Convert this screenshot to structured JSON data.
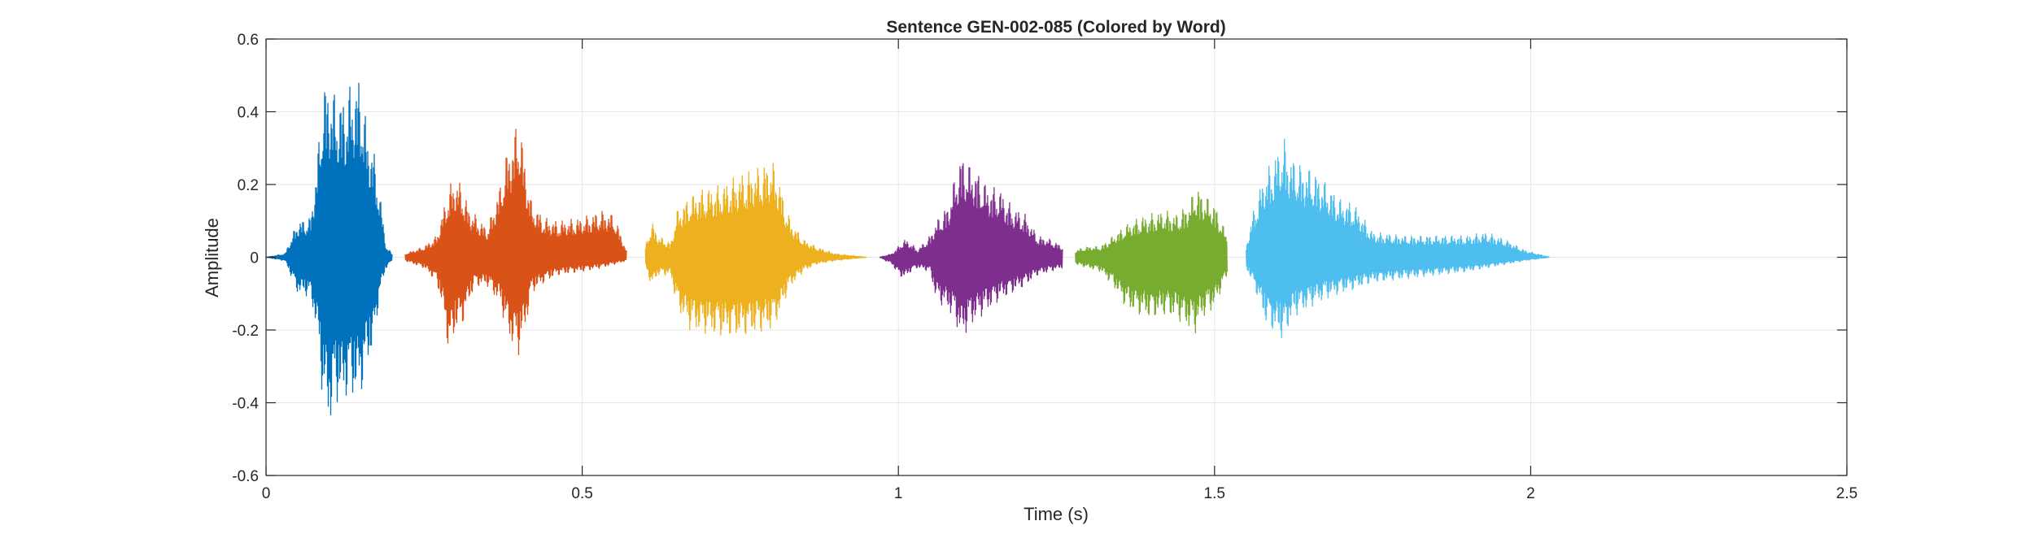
{
  "chart_data": {
    "type": "line",
    "title": "Sentence GEN-002-085 (Colored by Word)",
    "xlabel": "Time (s)",
    "ylabel": "Amplitude",
    "xlim": [
      0,
      2.5
    ],
    "ylim": [
      -0.6,
      0.6
    ],
    "xticks": [
      0,
      0.5,
      1,
      1.5,
      2,
      2.5
    ],
    "xtick_labels": [
      "0",
      "0.5",
      "1",
      "1.5",
      "2",
      "2.5"
    ],
    "yticks": [
      0.6,
      0.4,
      0.2,
      0,
      -0.2,
      -0.4,
      -0.6
    ],
    "ytick_labels": [
      "0.6",
      "0.4",
      "0.2",
      "0",
      "-0.2",
      "-0.4",
      "-0.6"
    ],
    "grid": true,
    "series": [
      {
        "color": "#0072BD",
        "x": [
          0.0,
          0.03,
          0.05,
          0.07,
          0.08,
          0.09,
          0.1,
          0.11,
          0.12,
          0.13,
          0.14,
          0.15,
          0.16,
          0.17,
          0.18,
          0.19,
          0.2
        ],
        "upper": [
          0.0,
          0.01,
          0.1,
          0.11,
          0.25,
          0.48,
          0.49,
          0.45,
          0.44,
          0.47,
          0.49,
          0.5,
          0.35,
          0.3,
          0.18,
          0.03,
          0.01
        ],
        "lower": [
          0.0,
          -0.01,
          -0.1,
          -0.11,
          -0.2,
          -0.4,
          -0.47,
          -0.4,
          -0.41,
          -0.38,
          -0.39,
          -0.38,
          -0.3,
          -0.25,
          -0.1,
          -0.03,
          -0.01
        ]
      },
      {
        "color": "#D95319",
        "x": [
          0.22,
          0.25,
          0.27,
          0.28,
          0.29,
          0.3,
          0.31,
          0.32,
          0.33,
          0.35,
          0.37,
          0.38,
          0.39,
          0.4,
          0.41,
          0.42,
          0.44,
          0.46,
          0.5,
          0.53,
          0.55,
          0.57
        ],
        "upper": [
          0.01,
          0.03,
          0.06,
          0.13,
          0.2,
          0.22,
          0.2,
          0.14,
          0.12,
          0.08,
          0.2,
          0.29,
          0.33,
          0.4,
          0.26,
          0.15,
          0.11,
          0.1,
          0.11,
          0.13,
          0.12,
          0.02
        ],
        "lower": [
          -0.01,
          -0.03,
          -0.07,
          -0.15,
          -0.28,
          -0.2,
          -0.19,
          -0.13,
          -0.08,
          -0.08,
          -0.13,
          -0.2,
          -0.25,
          -0.27,
          -0.2,
          -0.1,
          -0.07,
          -0.05,
          -0.04,
          -0.03,
          -0.02,
          -0.01
        ]
      },
      {
        "color": "#EDB120",
        "x": [
          0.6,
          0.61,
          0.62,
          0.64,
          0.65,
          0.67,
          0.69,
          0.72,
          0.75,
          0.78,
          0.8,
          0.81,
          0.82,
          0.83,
          0.85,
          0.87,
          0.9,
          0.95
        ],
        "upper": [
          0.03,
          0.1,
          0.06,
          0.04,
          0.13,
          0.17,
          0.19,
          0.2,
          0.23,
          0.25,
          0.27,
          0.23,
          0.15,
          0.1,
          0.05,
          0.03,
          0.01,
          0.0
        ],
        "lower": [
          -0.03,
          -0.08,
          -0.05,
          -0.05,
          -0.14,
          -0.2,
          -0.21,
          -0.22,
          -0.22,
          -0.21,
          -0.2,
          -0.17,
          -0.12,
          -0.08,
          -0.04,
          -0.02,
          -0.01,
          0.0
        ]
      },
      {
        "color": "#7E2F8E",
        "x": [
          0.97,
          0.99,
          1.0,
          1.01,
          1.02,
          1.03,
          1.05,
          1.06,
          1.08,
          1.09,
          1.1,
          1.11,
          1.12,
          1.14,
          1.16,
          1.18,
          1.2,
          1.22,
          1.24,
          1.26
        ],
        "upper": [
          0.0,
          0.01,
          0.03,
          0.05,
          0.04,
          0.02,
          0.06,
          0.1,
          0.15,
          0.23,
          0.29,
          0.26,
          0.25,
          0.2,
          0.19,
          0.14,
          0.12,
          0.06,
          0.05,
          0.03
        ],
        "lower": [
          0.0,
          -0.02,
          -0.05,
          -0.06,
          -0.04,
          -0.03,
          -0.04,
          -0.12,
          -0.15,
          -0.18,
          -0.23,
          -0.2,
          -0.18,
          -0.15,
          -0.12,
          -0.1,
          -0.08,
          -0.05,
          -0.04,
          -0.03
        ]
      },
      {
        "color": "#77AC30",
        "x": [
          1.28,
          1.3,
          1.32,
          1.34,
          1.36,
          1.38,
          1.4,
          1.42,
          1.44,
          1.46,
          1.47,
          1.48,
          1.5,
          1.52
        ],
        "upper": [
          0.02,
          0.03,
          0.03,
          0.06,
          0.09,
          0.11,
          0.12,
          0.13,
          0.12,
          0.15,
          0.2,
          0.18,
          0.15,
          0.06
        ],
        "lower": [
          -0.02,
          -0.03,
          -0.04,
          -0.08,
          -0.14,
          -0.16,
          -0.17,
          -0.16,
          -0.17,
          -0.2,
          -0.21,
          -0.17,
          -0.14,
          -0.05
        ]
      },
      {
        "color": "#4DBEEE",
        "x": [
          1.55,
          1.56,
          1.57,
          1.58,
          1.59,
          1.6,
          1.61,
          1.62,
          1.63,
          1.64,
          1.65,
          1.67,
          1.7,
          1.72,
          1.75,
          1.8,
          1.85,
          1.9,
          1.93,
          1.96,
          1.99,
          2.03
        ],
        "upper": [
          0.03,
          0.12,
          0.18,
          0.24,
          0.26,
          0.3,
          0.33,
          0.28,
          0.27,
          0.25,
          0.25,
          0.22,
          0.16,
          0.15,
          0.07,
          0.06,
          0.06,
          0.06,
          0.07,
          0.05,
          0.02,
          0.0
        ],
        "lower": [
          -0.03,
          -0.07,
          -0.12,
          -0.18,
          -0.2,
          -0.22,
          -0.23,
          -0.18,
          -0.16,
          -0.15,
          -0.14,
          -0.12,
          -0.1,
          -0.09,
          -0.07,
          -0.06,
          -0.05,
          -0.04,
          -0.03,
          -0.02,
          -0.01,
          0.0
        ]
      }
    ]
  }
}
